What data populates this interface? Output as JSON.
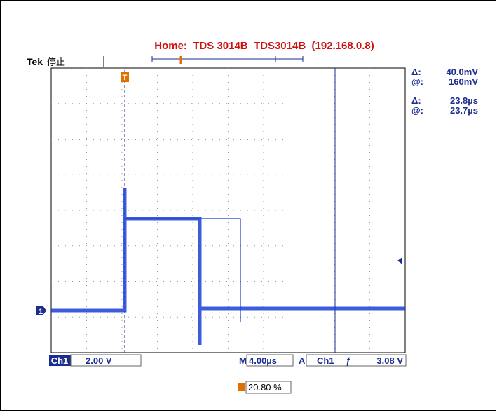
{
  "header": {
    "title": "Home:  TDS 3014B  TDS3014B  (192.168.0.8)"
  },
  "status": {
    "brand": "Tek",
    "state": "停止"
  },
  "markers": {
    "trigger": "T",
    "channel": "1"
  },
  "readouts": [
    {
      "label": "Δ:",
      "value": "40.0mV"
    },
    {
      "label": "@:",
      "value": "160mV"
    },
    {
      "label": "Δ:",
      "value": "23.8µs"
    },
    {
      "label": "@:",
      "value": "23.7µs"
    }
  ],
  "footer": {
    "channel": "Ch1",
    "volts_per_div": "2.00 V",
    "time_prefix": "M",
    "time_per_div": "4.00µs",
    "trigger_prefix": "A",
    "trigger_source": "Ch1",
    "trigger_slope": "ƒ",
    "trigger_level": "3.08 V",
    "trigger_position": "20.80 %"
  }
}
